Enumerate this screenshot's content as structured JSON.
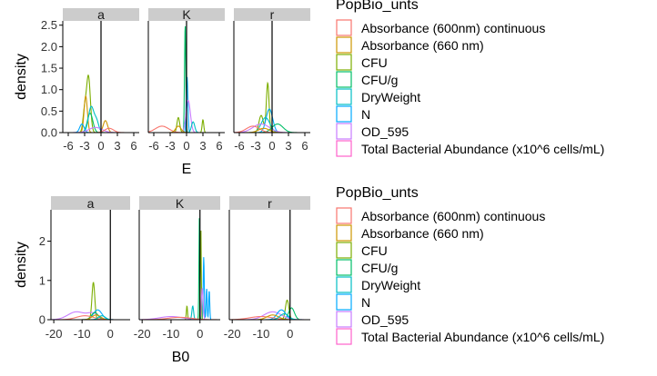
{
  "colors": {
    "Absorbance (600nm) continuous": "#F8766D",
    "Absorbance (660 nm)": "#CD9600",
    "CFU": "#7CAE00",
    "CFU/g": "#00BE67",
    "DryWeight": "#00BFC4",
    "N": "#00A9FF",
    "OD_595": "#C77CFF",
    "Total Bacterial Abundance (x10^6 cells/mL)": "#FF61CC"
  },
  "chart_data": [
    {
      "type": "area",
      "facet_labels": [
        "a",
        "K",
        "r"
      ],
      "xlabel": "E",
      "ylabel": "density",
      "xlim": [
        -7,
        7
      ],
      "ylim": [
        0,
        2.6
      ],
      "x_ticks": [
        -6,
        -3,
        0,
        3,
        6
      ],
      "y_ticks": [
        0.0,
        0.5,
        1.0,
        1.5,
        2.0,
        2.5
      ],
      "y_tick_labels": [
        "0.0",
        "0.5",
        "1.0",
        "1.5",
        "2.0",
        "2.5"
      ],
      "vline_x": 0,
      "legend": {
        "title": "PopBio_unts",
        "entries": [
          "Absorbance (600nm) continuous",
          "Absorbance (660 nm)",
          "CFU",
          "CFU/g",
          "DryWeight",
          "N",
          "OD_595",
          "Total Bacterial Abundance (x10^6 cells/mL)"
        ]
      },
      "facets": [
        {
          "label": "a",
          "series": [
            {
              "group": "CFU",
              "peaks": [
                [
                  -2.3,
                  1.3,
                  0.35
                ],
                [
                  -3.0,
                  0.5,
                  0.3
                ]
              ]
            },
            {
              "group": "Absorbance (660 nm)",
              "peaks": [
                [
                  -2.8,
                  0.85,
                  0.3
                ],
                [
                  0.8,
                  0.28,
                  0.4
                ]
              ]
            },
            {
              "group": "CFU/g",
              "peaks": [
                [
                  -2.0,
                  0.45,
                  0.5
                ]
              ]
            },
            {
              "group": "DryWeight",
              "peaks": [
                [
                  -1.8,
                  0.6,
                  0.5
                ],
                [
                  -0.8,
                  0.25,
                  0.4
                ]
              ]
            },
            {
              "group": "N",
              "peaks": [
                [
                  -3.5,
                  0.2,
                  0.4
                ]
              ]
            },
            {
              "group": "OD_595",
              "peaks": [
                [
                  -1.0,
                  0.12,
                  1.2
                ]
              ]
            },
            {
              "group": "Absorbance (600nm) continuous",
              "peaks": [
                [
                  1.5,
                  0.1,
                  0.8
                ]
              ]
            }
          ]
        },
        {
          "label": "K",
          "series": [
            {
              "group": "CFU/g",
              "peaks": [
                [
                  -0.25,
                  2.5,
                  0.12
                ]
              ]
            },
            {
              "group": "N",
              "peaks": [
                [
                  0.1,
                  1.3,
                  0.15
                ]
              ]
            },
            {
              "group": "OD_595",
              "peaks": [
                [
                  0.3,
                  0.75,
                  0.4
                ]
              ]
            },
            {
              "group": "CFU",
              "peaks": [
                [
                  -1.5,
                  0.35,
                  0.25
                ],
                [
                  3.0,
                  0.3,
                  0.15
                ]
              ]
            },
            {
              "group": "DryWeight",
              "peaks": [
                [
                  1.2,
                  0.25,
                  0.3
                ]
              ]
            },
            {
              "group": "Absorbance (600nm) continuous",
              "peaks": [
                [
                  -4.5,
                  0.15,
                  1.2
                ]
              ]
            },
            {
              "group": "Absorbance (660 nm)",
              "peaks": [
                [
                  -1.5,
                  0.15,
                  0.5
                ]
              ]
            }
          ]
        },
        {
          "label": "r",
          "series": [
            {
              "group": "CFU",
              "peaks": [
                [
                  -0.8,
                  1.15,
                  0.25
                ],
                [
                  -2.0,
                  0.4,
                  0.4
                ]
              ]
            },
            {
              "group": "N",
              "peaks": [
                [
                  -0.5,
                  0.55,
                  0.6
                ]
              ]
            },
            {
              "group": "DryWeight",
              "peaks": [
                [
                  -1.2,
                  0.35,
                  0.8
                ]
              ]
            },
            {
              "group": "OD_595",
              "peaks": [
                [
                  -2.0,
                  0.2,
                  1.5
                ]
              ]
            },
            {
              "group": "CFU/g",
              "peaks": [
                [
                  1.0,
                  0.2,
                  1.0
                ]
              ]
            },
            {
              "group": "Absorbance (600nm) continuous",
              "peaks": [
                [
                  -3.5,
                  0.15,
                  1.2
                ]
              ]
            },
            {
              "group": "Absorbance (660 nm)",
              "peaks": [
                [
                  -1.5,
                  0.1,
                  1.0
                ]
              ]
            }
          ]
        }
      ]
    },
    {
      "type": "area",
      "facet_labels": [
        "a",
        "K",
        "r"
      ],
      "xlabel": "B0",
      "ylabel": "density",
      "xlim": [
        -21,
        7
      ],
      "ylim": [
        0,
        2.8
      ],
      "x_ticks": [
        -20,
        -10,
        0
      ],
      "y_ticks": [
        0,
        1,
        2
      ],
      "y_tick_labels": [
        "0",
        "1",
        "2"
      ],
      "vline_x": 0,
      "legend": {
        "title": "PopBio_unts",
        "entries": [
          "Absorbance (600nm) continuous",
          "Absorbance (660 nm)",
          "CFU",
          "CFU/g",
          "DryWeight",
          "N",
          "OD_595",
          "Total Bacterial Abundance (x10^6 cells/mL)"
        ]
      },
      "facets": [
        {
          "label": "a",
          "series": [
            {
              "group": "CFU",
              "peaks": [
                [
                  -6.0,
                  0.95,
                  0.5
                ]
              ]
            },
            {
              "group": "OD_595",
              "peaks": [
                [
                  -12.0,
                  0.2,
                  3.0
                ],
                [
                  -6.0,
                  0.15,
                  2.0
                ]
              ]
            },
            {
              "group": "N",
              "peaks": [
                [
                  -4.5,
                  0.25,
                  1.5
                ]
              ]
            },
            {
              "group": "CFU/g",
              "peaks": [
                [
                  -5.5,
                  0.18,
                  1.2
                ]
              ]
            },
            {
              "group": "Absorbance (600nm) continuous",
              "peaks": [
                [
                  -9.0,
                  0.1,
                  3.0
                ]
              ]
            },
            {
              "group": "Absorbance (660 nm)",
              "peaks": [
                [
                  -5.0,
                  0.12,
                  1.5
                ]
              ]
            },
            {
              "group": "DryWeight",
              "peaks": [
                [
                  -3.0,
                  0.1,
                  1.2
                ]
              ]
            }
          ]
        },
        {
          "label": "K",
          "series": [
            {
              "group": "CFU/g",
              "peaks": [
                [
                  -0.2,
                  2.65,
                  0.15
                ]
              ]
            },
            {
              "group": "N",
              "peaks": [
                [
                  1.3,
                  1.6,
                  0.18
                ],
                [
                  2.3,
                  0.8,
                  0.18
                ],
                [
                  3.2,
                  0.75,
                  0.18
                ]
              ]
            },
            {
              "group": "CFU",
              "peaks": [
                [
                  0.3,
                  2.4,
                  0.15
                ],
                [
                  -4.5,
                  0.35,
                  0.2
                ]
              ]
            },
            {
              "group": "OD_595",
              "peaks": [
                [
                  0.8,
                  0.8,
                  0.3
                ],
                [
                  -10.0,
                  0.08,
                  4.0
                ]
              ]
            },
            {
              "group": "DryWeight",
              "peaks": [
                [
                  -2.5,
                  0.35,
                  0.3
                ]
              ]
            },
            {
              "group": "Absorbance (600nm) continuous",
              "peaks": [
                [
                  -7.0,
                  0.06,
                  4.0
                ]
              ]
            }
          ]
        },
        {
          "label": "r",
          "series": [
            {
              "group": "CFU",
              "peaks": [
                [
                  -1.0,
                  0.5,
                  0.6
                ]
              ]
            },
            {
              "group": "CFU/g",
              "peaks": [
                [
                  0.5,
                  0.3,
                  1.0
                ]
              ]
            },
            {
              "group": "OD_595",
              "peaks": [
                [
                  -6.0,
                  0.2,
                  3.0
                ]
              ]
            },
            {
              "group": "N",
              "peaks": [
                [
                  -3.0,
                  0.25,
                  1.5
                ]
              ]
            },
            {
              "group": "Absorbance (600nm) continuous",
              "peaks": [
                [
                  -10.0,
                  0.08,
                  4.0
                ]
              ]
            },
            {
              "group": "Absorbance (660 nm)",
              "peaks": [
                [
                  -6.0,
                  0.12,
                  2.0
                ]
              ]
            },
            {
              "group": "DryWeight",
              "peaks": [
                [
                  -2.0,
                  0.15,
                  1.5
                ]
              ]
            }
          ]
        }
      ]
    }
  ]
}
